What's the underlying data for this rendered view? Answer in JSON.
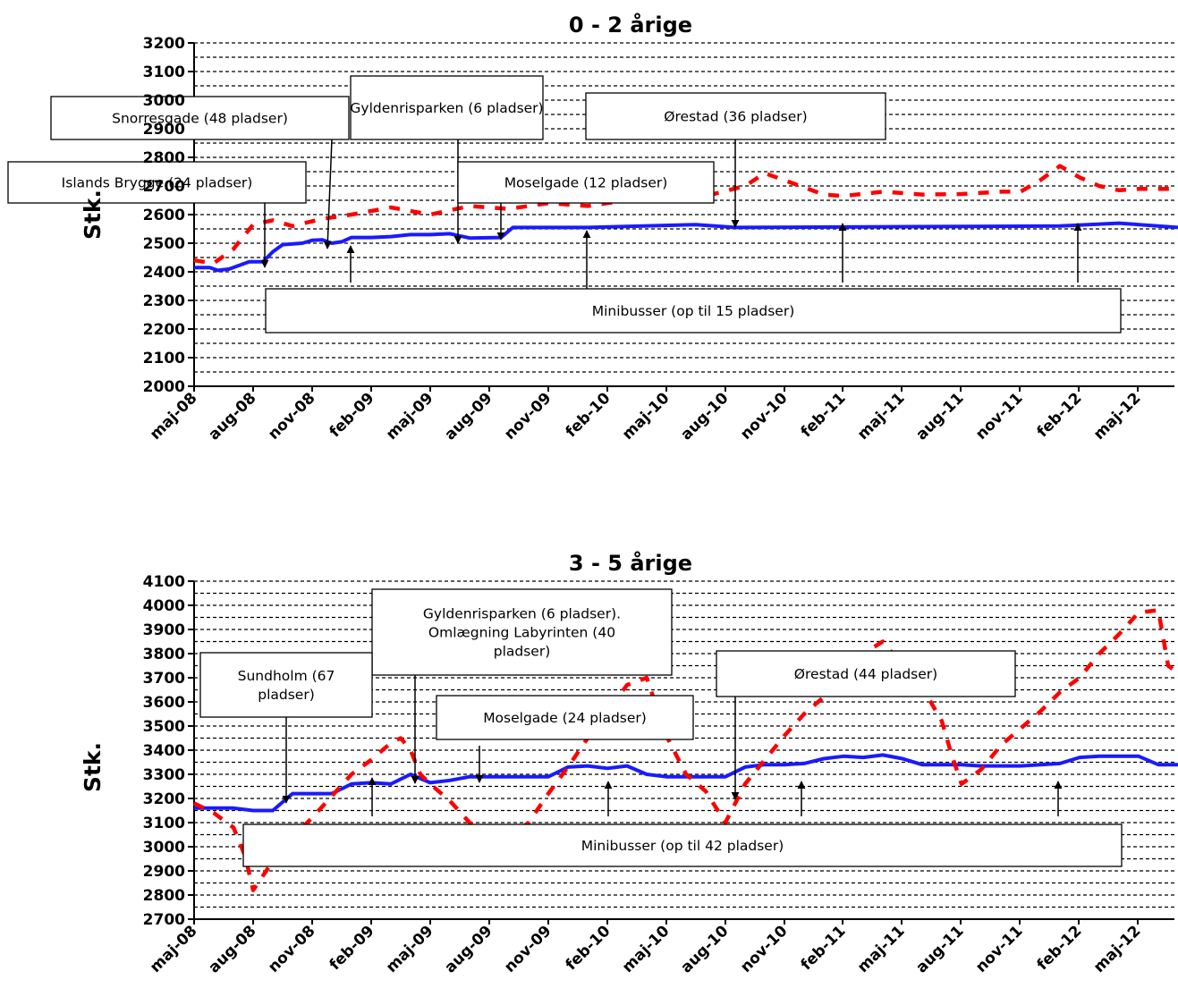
{
  "chart_data": [
    {
      "type": "line",
      "title": "0 - 2 årige",
      "xlabel": "",
      "ylabel": "Stk.",
      "ylim": [
        2000,
        3200
      ],
      "y_ticks": [
        2000,
        2100,
        2200,
        2300,
        2400,
        2500,
        2600,
        2700,
        2800,
        2900,
        3000,
        3100,
        3200
      ],
      "x_tick_labels": [
        "maj-08",
        "aug-08",
        "nov-08",
        "feb-09",
        "maj-09",
        "aug-09",
        "nov-09",
        "feb-10",
        "maj-10",
        "aug-10",
        "nov-10",
        "feb-11",
        "maj-11",
        "aug-11",
        "nov-11",
        "feb-12",
        "maj-12"
      ],
      "grid": true,
      "legend": "none",
      "series": [
        {
          "style": "solid",
          "color": "#1a1aff",
          "points": [
            [
              0,
              2415
            ],
            [
              0.8,
              2415
            ],
            [
              1.2,
              2405
            ],
            [
              1.8,
              2410
            ],
            [
              2.8,
              2435
            ],
            [
              3.5,
              2435
            ],
            [
              4,
              2470
            ],
            [
              4.5,
              2495
            ],
            [
              5.5,
              2500
            ],
            [
              6,
              2510
            ],
            [
              6.5,
              2512
            ],
            [
              7,
              2500
            ],
            [
              7.5,
              2505
            ],
            [
              8,
              2520
            ],
            [
              9,
              2520
            ],
            [
              10,
              2523
            ],
            [
              11,
              2530
            ],
            [
              12,
              2530
            ],
            [
              13,
              2533
            ],
            [
              14,
              2518
            ],
            [
              15.6,
              2520
            ],
            [
              16.2,
              2555
            ],
            [
              20,
              2555
            ],
            [
              25.5,
              2565
            ],
            [
              27.5,
              2555
            ],
            [
              44,
              2560
            ],
            [
              47,
              2570
            ],
            [
              50,
              2555
            ]
          ]
        },
        {
          "style": "dashed",
          "color": "#ff0000",
          "points": [
            [
              0,
              2440
            ],
            [
              1,
              2430
            ],
            [
              2,
              2480
            ],
            [
              3,
              2565
            ],
            [
              4,
              2580
            ],
            [
              5,
              2560
            ],
            [
              6.5,
              2585
            ],
            [
              8,
              2600
            ],
            [
              10,
              2625
            ],
            [
              12,
              2600
            ],
            [
              14,
              2630
            ],
            [
              16,
              2620
            ],
            [
              18,
              2640
            ],
            [
              20,
              2630
            ],
            [
              22,
              2650
            ],
            [
              24,
              2650
            ],
            [
              26,
              2665
            ],
            [
              28,
              2700
            ],
            [
              29,
              2745
            ],
            [
              30,
              2720
            ],
            [
              31,
              2695
            ],
            [
              32,
              2670
            ],
            [
              33,
              2665
            ],
            [
              35,
              2680
            ],
            [
              37,
              2670
            ],
            [
              39,
              2672
            ],
            [
              41,
              2680
            ],
            [
              42,
              2680
            ],
            [
              43,
              2720
            ],
            [
              44,
              2770
            ],
            [
              45,
              2730
            ],
            [
              46,
              2700
            ],
            [
              47,
              2685
            ],
            [
              48,
              2690
            ],
            [
              50,
              2690
            ]
          ]
        }
      ],
      "annotations": [
        {
          "text": "Snorresgade (48 pladser)"
        },
        {
          "text": "Gyldenrisparken (6 pladser)"
        },
        {
          "text": "Ørestad (36 pladser)"
        },
        {
          "text": "Islands Brygge (24 pladser)"
        },
        {
          "text": "Moselgade (12 pladser)"
        },
        {
          "text": "Minibusser (op til 15 pladser)"
        }
      ]
    },
    {
      "type": "line",
      "title": "3 - 5 årige",
      "xlabel": "",
      "ylabel": "Stk.",
      "ylim": [
        2700,
        4100
      ],
      "y_ticks": [
        2700,
        2800,
        2900,
        3000,
        3100,
        3200,
        3300,
        3400,
        3500,
        3600,
        3700,
        3800,
        3900,
        4000,
        4100
      ],
      "x_tick_labels": [
        "maj-08",
        "aug-08",
        "nov-08",
        "feb-09",
        "maj-09",
        "aug-09",
        "nov-09",
        "feb-10",
        "maj-10",
        "aug-10",
        "nov-10",
        "feb-11",
        "maj-11",
        "aug-11",
        "nov-11",
        "feb-12",
        "maj-12"
      ],
      "grid": true,
      "legend": "none",
      "series": [
        {
          "style": "solid",
          "color": "#1a1aff",
          "points": [
            [
              0,
              3160
            ],
            [
              2,
              3160
            ],
            [
              3,
              3150
            ],
            [
              4,
              3150
            ],
            [
              5,
              3220
            ],
            [
              7,
              3220
            ],
            [
              8,
              3260
            ],
            [
              9,
              3265
            ],
            [
              10,
              3260
            ],
            [
              11,
              3300
            ],
            [
              12,
              3265
            ],
            [
              13,
              3275
            ],
            [
              14,
              3290
            ],
            [
              18,
              3290
            ],
            [
              19,
              3330
            ],
            [
              20,
              3335
            ],
            [
              21,
              3325
            ],
            [
              22,
              3335
            ],
            [
              23,
              3300
            ],
            [
              24,
              3290
            ],
            [
              27,
              3290
            ],
            [
              28,
              3330
            ],
            [
              29,
              3340
            ],
            [
              30,
              3340
            ],
            [
              31,
              3345
            ],
            [
              32,
              3365
            ],
            [
              33,
              3375
            ],
            [
              34,
              3370
            ],
            [
              35,
              3380
            ],
            [
              36,
              3365
            ],
            [
              37,
              3340
            ],
            [
              39,
              3340
            ],
            [
              40,
              3335
            ],
            [
              42,
              3335
            ],
            [
              44,
              3345
            ],
            [
              45,
              3370
            ],
            [
              46,
              3375
            ],
            [
              48,
              3375
            ],
            [
              49,
              3340
            ],
            [
              50,
              3340
            ]
          ]
        },
        {
          "style": "dashed",
          "color": "#ff0000",
          "points": [
            [
              0,
              3180
            ],
            [
              1,
              3140
            ],
            [
              2,
              3080
            ],
            [
              2.6,
              2960
            ],
            [
              3,
              2820
            ],
            [
              3.5,
              2880
            ],
            [
              4,
              2940
            ],
            [
              5,
              3040
            ],
            [
              6,
              3120
            ],
            [
              7,
              3210
            ],
            [
              8,
              3300
            ],
            [
              9,
              3360
            ],
            [
              10,
              3430
            ],
            [
              10.5,
              3450
            ],
            [
              11,
              3400
            ],
            [
              11.5,
              3300
            ],
            [
              12,
              3260
            ],
            [
              13,
              3190
            ],
            [
              14,
              3100
            ],
            [
              15,
              3060
            ],
            [
              16,
              3040
            ],
            [
              17,
              3100
            ],
            [
              18,
              3220
            ],
            [
              19,
              3330
            ],
            [
              20,
              3450
            ],
            [
              21,
              3560
            ],
            [
              22,
              3670
            ],
            [
              23,
              3700
            ],
            [
              23.5,
              3580
            ],
            [
              24,
              3460
            ],
            [
              25,
              3300
            ],
            [
              26,
              3230
            ],
            [
              27,
              3100
            ],
            [
              28,
              3260
            ],
            [
              29,
              3360
            ],
            [
              30,
              3460
            ],
            [
              31,
              3550
            ],
            [
              32,
              3620
            ],
            [
              33,
              3680
            ],
            [
              34,
              3800
            ],
            [
              35,
              3850
            ],
            [
              36,
              3750
            ],
            [
              37,
              3660
            ],
            [
              38,
              3520
            ],
            [
              38.5,
              3380
            ],
            [
              39,
              3260
            ],
            [
              40,
              3320
            ],
            [
              41,
              3420
            ],
            [
              42,
              3490
            ],
            [
              43,
              3560
            ],
            [
              44,
              3640
            ],
            [
              45,
              3700
            ],
            [
              46,
              3800
            ],
            [
              47,
              3880
            ],
            [
              48,
              3970
            ],
            [
              49,
              3980
            ],
            [
              49.5,
              3750
            ],
            [
              50,
              3720
            ],
            [
              50.5,
              3630
            ],
            [
              51,
              3600
            ]
          ]
        }
      ],
      "annotations": [
        {
          "text_lines": [
            "Gyldenrisparken (6 pladser).",
            "Omlægning Labyrinten (40",
            "pladser)"
          ]
        },
        {
          "text_lines": [
            "Sundholm (67",
            "pladser)"
          ]
        },
        {
          "text": "Ørestad (44 pladser)"
        },
        {
          "text": "Moselgade (24 pladser)"
        },
        {
          "text": "Minibusser (op til 42 pladser)"
        }
      ]
    }
  ]
}
